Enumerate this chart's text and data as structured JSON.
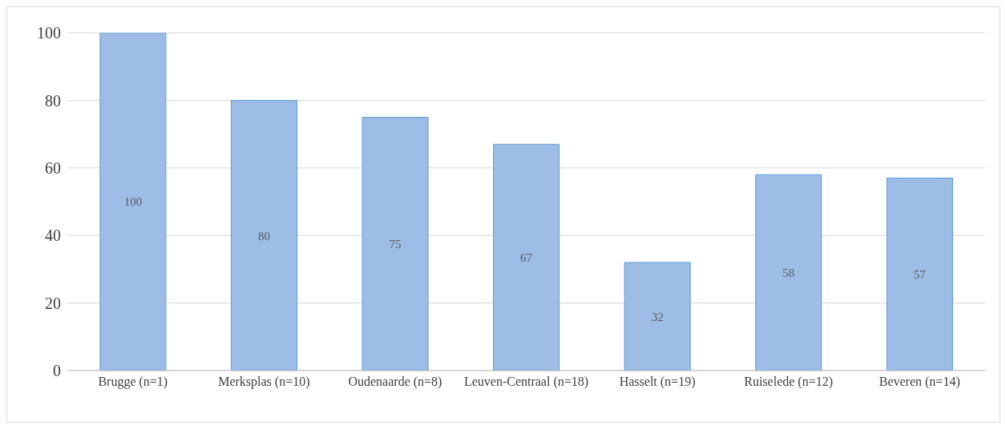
{
  "chart_data": {
    "type": "bar",
    "categories": [
      "Brugge (n=1)",
      "Merksplas (n=10)",
      "Oudenaarde (n=8)",
      "Leuven-Centraal (n=18)",
      "Hasselt (n=19)",
      "Ruiselede (n=12)",
      "Beveren (n=14)"
    ],
    "values": [
      100,
      80,
      75,
      67,
      32,
      58,
      57
    ],
    "color": "#9dbde6",
    "ylim": [
      0,
      100
    ],
    "yticks": [
      0,
      20,
      40,
      60,
      80,
      100
    ],
    "grid": "y",
    "data_labels": true
  }
}
